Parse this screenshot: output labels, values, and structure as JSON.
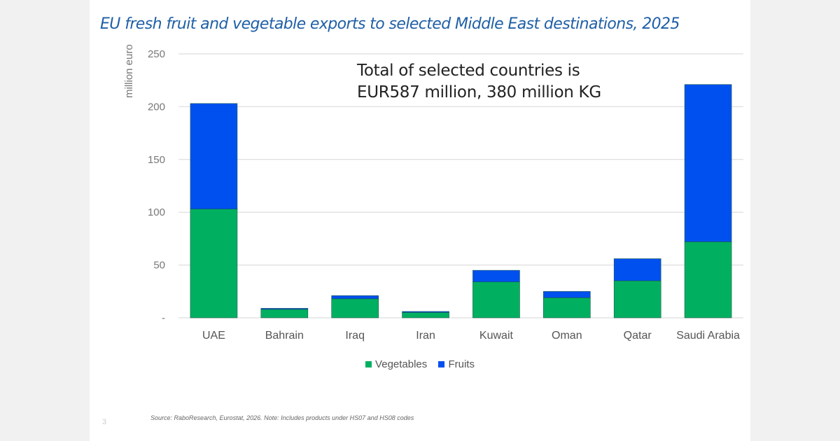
{
  "chart_data": {
    "type": "bar",
    "stacked": true,
    "title": "EU fresh fruit and vegetable exports to selected Middle East destinations, 2025",
    "ylabel": "million euro",
    "xlabel": "",
    "ylim": [
      0,
      250
    ],
    "yticks": [
      0,
      50,
      100,
      150,
      200,
      250
    ],
    "ytick_labels": [
      "-",
      "50",
      "100",
      "150",
      "200",
      "250"
    ],
    "grid": true,
    "legend_position": "bottom",
    "categories": [
      "UAE",
      "Bahrain",
      "Iraq",
      "Iran",
      "Kuwait",
      "Oman",
      "Qatar",
      "Saudi Arabia"
    ],
    "series": [
      {
        "name": "Vegetables",
        "color": "#00b060",
        "values": [
          103,
          8,
          18,
          5,
          34,
          19,
          35,
          72
        ]
      },
      {
        "name": "Fruits",
        "color": "#0050f0",
        "values": [
          100,
          1,
          3,
          1,
          11,
          6,
          21,
          149
        ]
      }
    ],
    "annotation": [
      "Total of selected countries is",
      "EUR587 million, 380 million KG"
    ]
  },
  "footer": {
    "source": "Source: RaboResearch, Eurostat, 2026. Note: Includes products under HS07 and HS08 codes",
    "page_number": "3"
  }
}
